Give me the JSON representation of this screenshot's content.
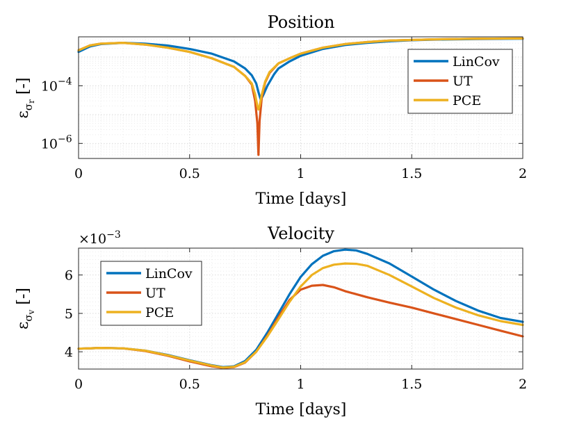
{
  "chart_data": [
    {
      "type": "line",
      "title": "Position",
      "xlabel": "Time [days]",
      "ylabel": "ε σr [-]",
      "yscale": "log",
      "xlim": [
        0,
        2
      ],
      "ylim": [
        3e-07,
        0.005
      ],
      "x_ticks": [
        "0",
        "0.5",
        "1",
        "1.5",
        "2"
      ],
      "y_ticks": [
        {
          "value": 0.0001,
          "label": "10",
          "exp": "−4"
        },
        {
          "value": 1e-06,
          "label": "10",
          "exp": "−6"
        }
      ],
      "legend": [
        "LinCov",
        "UT",
        "PCE"
      ],
      "legend_position": "top-right",
      "grid": true,
      "series": [
        {
          "name": "LinCov",
          "color": "#0072BD",
          "x": [
            0,
            0.05,
            0.1,
            0.2,
            0.3,
            0.4,
            0.5,
            0.6,
            0.7,
            0.75,
            0.78,
            0.8,
            0.81,
            0.82,
            0.83,
            0.85,
            0.88,
            0.9,
            0.95,
            1.0,
            1.1,
            1.2,
            1.3,
            1.4,
            1.5,
            1.6,
            1.8,
            2.0
          ],
          "y": [
            0.0015,
            0.0023,
            0.0028,
            0.0031,
            0.0029,
            0.0025,
            0.0019,
            0.0013,
            0.0007,
            0.0004,
            0.00023,
            0.00012,
            6e-05,
            3.3e-05,
            4.5e-05,
            0.0001,
            0.00025,
            0.0004,
            0.0007,
            0.0011,
            0.0019,
            0.0026,
            0.0031,
            0.0035,
            0.0038,
            0.004,
            0.0042,
            0.0043
          ]
        },
        {
          "name": "UT",
          "color": "#D95319",
          "x": [
            0,
            0.05,
            0.1,
            0.2,
            0.3,
            0.4,
            0.5,
            0.6,
            0.7,
            0.75,
            0.78,
            0.795,
            0.805,
            0.81,
            0.815,
            0.825,
            0.84,
            0.86,
            0.9,
            0.95,
            1.0,
            1.1,
            1.2,
            1.3,
            1.4,
            1.5,
            1.6,
            1.8,
            2.0
          ],
          "y": [
            0.0017,
            0.0025,
            0.0029,
            0.0031,
            0.0027,
            0.0021,
            0.0015,
            0.0009,
            0.00045,
            0.00022,
            0.00011,
            3e-05,
            5e-06,
            4e-07,
            6e-06,
            4e-05,
            0.00013,
            0.00028,
            0.0006,
            0.0009,
            0.0013,
            0.0021,
            0.0028,
            0.0033,
            0.0037,
            0.0039,
            0.0041,
            0.0043,
            0.0044
          ]
        },
        {
          "name": "PCE",
          "color": "#EDB120",
          "x": [
            0,
            0.05,
            0.1,
            0.2,
            0.3,
            0.4,
            0.5,
            0.6,
            0.7,
            0.75,
            0.78,
            0.795,
            0.805,
            0.81,
            0.815,
            0.825,
            0.84,
            0.86,
            0.9,
            0.95,
            1.0,
            1.1,
            1.2,
            1.3,
            1.4,
            1.5,
            1.6,
            1.8,
            2.0
          ],
          "y": [
            0.0017,
            0.0025,
            0.0029,
            0.0031,
            0.0027,
            0.0021,
            0.0015,
            0.0009,
            0.00045,
            0.00022,
            0.00012,
            5e-05,
            2e-05,
            1.5e-05,
            2e-05,
            5e-05,
            0.00014,
            0.0003,
            0.0006,
            0.0009,
            0.0013,
            0.0021,
            0.0028,
            0.0033,
            0.0037,
            0.0039,
            0.0041,
            0.0043,
            0.0044
          ]
        }
      ]
    },
    {
      "type": "line",
      "title": "Velocity",
      "xlabel": "Time [days]",
      "ylabel": "ε σv [-]",
      "yscale": "linear",
      "y_multiplier": "×10",
      "y_multiplier_exp": "−3",
      "xlim": [
        0,
        2
      ],
      "ylim": [
        3.55,
        6.7
      ],
      "x_ticks": [
        "0",
        "0.5",
        "1",
        "1.5",
        "2"
      ],
      "y_ticks": [
        {
          "value": 4,
          "label": "4"
        },
        {
          "value": 5,
          "label": "5"
        },
        {
          "value": 6,
          "label": "6"
        }
      ],
      "legend": [
        "LinCov",
        "UT",
        "PCE"
      ],
      "legend_position": "top-left",
      "grid": true,
      "series": [
        {
          "name": "LinCov",
          "color": "#0072BD",
          "x": [
            0,
            0.1,
            0.2,
            0.3,
            0.4,
            0.5,
            0.6,
            0.65,
            0.7,
            0.75,
            0.8,
            0.85,
            0.9,
            0.95,
            1.0,
            1.05,
            1.1,
            1.15,
            1.2,
            1.25,
            1.3,
            1.4,
            1.5,
            1.6,
            1.7,
            1.8,
            1.9,
            2.0
          ],
          "y": [
            4.08,
            4.1,
            4.09,
            4.03,
            3.92,
            3.78,
            3.65,
            3.6,
            3.62,
            3.76,
            4.05,
            4.5,
            5.0,
            5.5,
            5.95,
            6.28,
            6.5,
            6.62,
            6.66,
            6.64,
            6.55,
            6.3,
            5.96,
            5.62,
            5.32,
            5.07,
            4.88,
            4.78
          ]
        },
        {
          "name": "UT",
          "color": "#D95319",
          "x": [
            0,
            0.1,
            0.2,
            0.3,
            0.4,
            0.5,
            0.6,
            0.65,
            0.7,
            0.75,
            0.8,
            0.85,
            0.9,
            0.95,
            1.0,
            1.05,
            1.1,
            1.15,
            1.2,
            1.3,
            1.4,
            1.5,
            1.6,
            1.7,
            1.8,
            1.9,
            2.0
          ],
          "y": [
            4.08,
            4.1,
            4.09,
            4.02,
            3.9,
            3.75,
            3.62,
            3.58,
            3.6,
            3.72,
            4.0,
            4.42,
            4.9,
            5.35,
            5.62,
            5.72,
            5.74,
            5.68,
            5.58,
            5.42,
            5.28,
            5.15,
            5.0,
            4.85,
            4.7,
            4.55,
            4.4
          ]
        },
        {
          "name": "PCE",
          "color": "#EDB120",
          "x": [
            0,
            0.1,
            0.2,
            0.3,
            0.4,
            0.5,
            0.6,
            0.65,
            0.7,
            0.75,
            0.8,
            0.85,
            0.9,
            0.95,
            1.0,
            1.05,
            1.1,
            1.15,
            1.2,
            1.25,
            1.3,
            1.4,
            1.5,
            1.6,
            1.7,
            1.8,
            1.9,
            2.0
          ],
          "y": [
            4.08,
            4.1,
            4.09,
            4.03,
            3.91,
            3.77,
            3.64,
            3.59,
            3.61,
            3.73,
            4.0,
            4.4,
            4.85,
            5.3,
            5.7,
            6.0,
            6.18,
            6.27,
            6.3,
            6.29,
            6.24,
            6.0,
            5.7,
            5.4,
            5.15,
            4.95,
            4.8,
            4.7
          ]
        }
      ]
    }
  ]
}
